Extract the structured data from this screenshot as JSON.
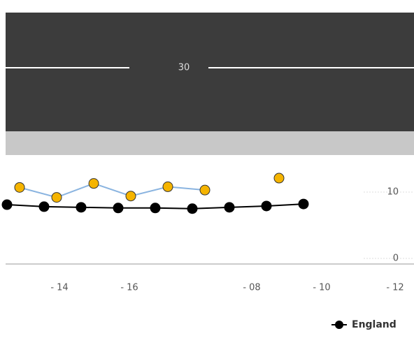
{
  "chart_data": {
    "type": "line",
    "annotation": "30",
    "x_labels": [
      "- 14",
      "- 16",
      "- 08",
      "- 10",
      "- 12"
    ],
    "series": [
      {
        "name": "England",
        "color": "#000000",
        "values": [
          8.1,
          7.8,
          7.7,
          7.6,
          7.6,
          7.5,
          7.7,
          7.9,
          8.2
        ]
      },
      {
        "name": null,
        "color": "#f5b400",
        "values": [
          10.7,
          9.2,
          11.3,
          9.4,
          10.8,
          10.3,
          null,
          12.1
        ]
      }
    ],
    "ylim": [
      0,
      12.5
    ],
    "yticks": [
      0,
      10
    ]
  }
}
